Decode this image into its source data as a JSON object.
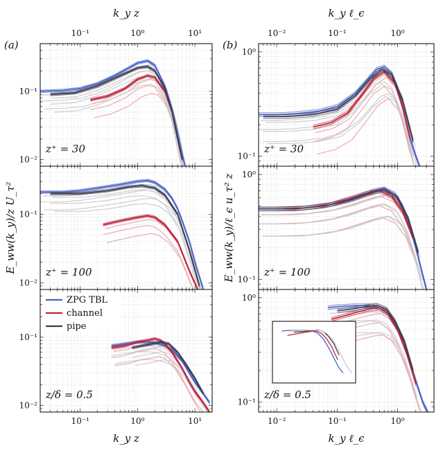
{
  "chart_data": [
    {
      "type": "line",
      "panel": "(a)",
      "top_xlabel": "k_y z",
      "xlabel": "k_y z",
      "ylabel": "E_ww(k_y)/z U_τ²",
      "xscale": "log",
      "yscale": "log",
      "xlim": [
        0.02,
        20
      ],
      "x_tick_labels": [
        "10⁻¹",
        "10⁰",
        "10¹"
      ],
      "subplots": [
        {
          "annotation": "z⁺ = 30",
          "ylim": [
            0.008,
            0.5
          ],
          "y_tick_labels": [
            "10⁻¹",
            "10⁻²"
          ],
          "series": [
            {
              "name": "ZPG TBL",
              "x": [
                0.02,
                0.05,
                0.1,
                0.2,
                0.4,
                0.7,
                1.0,
                1.5,
                2.0,
                3.0,
                4.0,
                5.0,
                6.0,
                7.0
              ],
              "y": [
                0.1,
                0.103,
                0.11,
                0.13,
                0.17,
                0.22,
                0.26,
                0.28,
                0.24,
                0.12,
                0.055,
                0.025,
                0.012,
                0.007
              ]
            },
            {
              "name": "channel",
              "x": [
                0.15,
                0.3,
                0.6,
                1.0,
                1.5,
                2.0,
                3.0,
                4.0,
                5.0,
                6.0
              ],
              "y": [
                0.075,
                0.085,
                0.11,
                0.15,
                0.17,
                0.16,
                0.1,
                0.05,
                0.02,
                0.01
              ]
            },
            {
              "name": "pipe",
              "x": [
                0.03,
                0.08,
                0.2,
                0.5,
                1.0,
                1.5,
                2.0,
                3.0,
                4.0,
                5.0,
                6.0
              ],
              "y": [
                0.09,
                0.095,
                0.12,
                0.17,
                0.22,
                0.23,
                0.2,
                0.11,
                0.05,
                0.02,
                0.01
              ]
            }
          ]
        },
        {
          "annotation": "z⁺ = 100",
          "ylim": [
            0.008,
            0.5
          ],
          "y_tick_labels": [
            "10⁻¹",
            "10⁻²"
          ],
          "series": [
            {
              "name": "ZPG TBL",
              "x": [
                0.02,
                0.05,
                0.1,
                0.2,
                0.5,
                1.0,
                1.5,
                2.0,
                3.0,
                4.0,
                5.0,
                6.0,
                8.0,
                10.0,
                14.0
              ],
              "y": [
                0.21,
                0.21,
                0.22,
                0.24,
                0.27,
                0.3,
                0.31,
                0.29,
                0.23,
                0.17,
                0.12,
                0.08,
                0.04,
                0.02,
                0.008
              ]
            },
            {
              "name": "channel",
              "x": [
                0.25,
                0.5,
                1.0,
                1.5,
                2.0,
                3.0,
                5.0,
                8.0,
                12.0
              ],
              "y": [
                0.07,
                0.08,
                0.09,
                0.095,
                0.09,
                0.07,
                0.04,
                0.015,
                0.007
              ]
            },
            {
              "name": "pipe",
              "x": [
                0.03,
                0.1,
                0.3,
                0.7,
                1.2,
                2.0,
                3.0,
                5.0,
                8.0,
                12.0
              ],
              "y": [
                0.2,
                0.2,
                0.22,
                0.25,
                0.26,
                0.24,
                0.19,
                0.1,
                0.03,
                0.009
              ]
            }
          ]
        },
        {
          "annotation": "z/δ = 0.5",
          "ylim": [
            0.008,
            0.5
          ],
          "y_tick_labels": [
            "10⁻¹",
            "10⁻²"
          ],
          "series": [
            {
              "name": "ZPG TBL",
              "x": [
                0.35,
                0.6,
                1.0,
                1.5,
                2.0,
                3.0,
                4.0,
                6.0,
                8.0,
                10.0,
                14.0,
                18.0
              ],
              "y": [
                0.075,
                0.08,
                0.085,
                0.085,
                0.083,
                0.075,
                0.065,
                0.045,
                0.03,
                0.022,
                0.015,
                0.011
              ]
            },
            {
              "name": "channel",
              "x": [
                0.35,
                0.6,
                1.0,
                1.5,
                2.0,
                2.5,
                3.0,
                4.0,
                6.0,
                8.0,
                10.0,
                14.0,
                18.0
              ],
              "y": [
                0.07,
                0.075,
                0.085,
                0.09,
                0.095,
                0.09,
                0.08,
                0.06,
                0.035,
                0.022,
                0.016,
                0.011,
                0.008
              ]
            },
            {
              "name": "pipe",
              "x": [
                0.8,
                1.2,
                1.8,
                2.5,
                3.5,
                5.0,
                7.0,
                10.0,
                14.0
              ],
              "y": [
                0.07,
                0.075,
                0.08,
                0.085,
                0.08,
                0.06,
                0.04,
                0.025,
                0.015
              ]
            }
          ]
        }
      ],
      "legend": {
        "placement": "top-left of bottom subplot",
        "entries": [
          {
            "label": "ZPG TBL",
            "color": "#4a62c9"
          },
          {
            "label": "channel",
            "color": "#c0243a"
          },
          {
            "label": "pipe",
            "color": "#3a3d52"
          }
        ]
      }
    },
    {
      "type": "line",
      "panel": "(b)",
      "top_xlabel": "k_y ℓ_ϵ",
      "xlabel": "k_y ℓ_ϵ",
      "ylabel": "E_ww(k_y)/ℓ_ϵ u_τ² z",
      "xscale": "log",
      "yscale": "log",
      "xlim": [
        0.005,
        4
      ],
      "x_tick_labels": [
        "10⁻²",
        "10⁻¹",
        "10⁰"
      ],
      "subplots": [
        {
          "annotation": "z⁺ = 30",
          "ylim": [
            0.08,
            1.2
          ],
          "y_tick_labels": [
            "10⁰",
            "10⁻¹"
          ],
          "series": [
            {
              "name": "ZPG TBL",
              "x": [
                0.005,
                0.01,
                0.02,
                0.05,
                0.1,
                0.2,
                0.3,
                0.45,
                0.6,
                0.8,
                1.0,
                1.3,
                1.6,
                2.0,
                2.5
              ],
              "y": [
                0.25,
                0.25,
                0.255,
                0.27,
                0.3,
                0.4,
                0.52,
                0.68,
                0.72,
                0.62,
                0.45,
                0.25,
                0.15,
                0.1,
                0.07
              ]
            },
            {
              "name": "channel",
              "x": [
                0.04,
                0.08,
                0.15,
                0.25,
                0.4,
                0.6,
                0.9,
                1.2,
                1.6
              ],
              "y": [
                0.19,
                0.21,
                0.26,
                0.38,
                0.55,
                0.65,
                0.5,
                0.3,
                0.15
              ]
            },
            {
              "name": "pipe",
              "x": [
                0.006,
                0.015,
                0.04,
                0.1,
                0.2,
                0.35,
                0.55,
                0.8,
                1.2,
                1.8
              ],
              "y": [
                0.24,
                0.24,
                0.25,
                0.28,
                0.38,
                0.55,
                0.68,
                0.6,
                0.35,
                0.14
              ]
            }
          ]
        },
        {
          "annotation": "z⁺ = 100",
          "ylim": [
            0.08,
            1.2
          ],
          "y_tick_labels": [
            "10⁰",
            "10⁻¹"
          ],
          "series": [
            {
              "name": "ZPG TBL",
              "x": [
                0.005,
                0.01,
                0.03,
                0.08,
                0.2,
                0.4,
                0.6,
                0.9,
                1.2,
                1.6,
                2.0,
                2.5,
                3.0
              ],
              "y": [
                0.47,
                0.47,
                0.48,
                0.52,
                0.6,
                0.7,
                0.73,
                0.65,
                0.5,
                0.32,
                0.2,
                0.12,
                0.08
              ]
            },
            {
              "name": "channel",
              "x": [
                0.01,
                0.03,
                0.08,
                0.15,
                0.3,
                0.5,
                0.8,
                1.2,
                1.8
              ],
              "y": [
                0.47,
                0.48,
                0.52,
                0.58,
                0.66,
                0.7,
                0.62,
                0.45,
                0.25
              ]
            },
            {
              "name": "pipe",
              "x": [
                0.005,
                0.02,
                0.06,
                0.15,
                0.35,
                0.6,
                1.0,
                1.5,
                2.2
              ],
              "y": [
                0.47,
                0.47,
                0.5,
                0.56,
                0.66,
                0.72,
                0.6,
                0.38,
                0.18
              ]
            }
          ]
        },
        {
          "annotation": "z/δ = 0.5",
          "ylim": [
            0.08,
            1.2
          ],
          "y_tick_labels": [
            "10⁰",
            "10⁻¹"
          ],
          "series": [
            {
              "name": "ZPG TBL",
              "x": [
                0.07,
                0.1,
                0.2,
                0.35,
                0.5,
                0.7,
                1.0,
                1.4,
                2.0,
                2.6,
                3.5
              ],
              "y": [
                0.8,
                0.82,
                0.84,
                0.84,
                0.8,
                0.7,
                0.5,
                0.3,
                0.16,
                0.1,
                0.07
              ]
            },
            {
              "name": "channel",
              "x": [
                0.08,
                0.12,
                0.2,
                0.35,
                0.5,
                0.7,
                1.0,
                1.4,
                2.0
              ],
              "y": [
                0.62,
                0.66,
                0.72,
                0.78,
                0.8,
                0.7,
                0.5,
                0.3,
                0.15
              ]
            },
            {
              "name": "pipe",
              "x": [
                0.1,
                0.18,
                0.3,
                0.45,
                0.65,
                0.9,
                1.3,
                1.8
              ],
              "y": [
                0.75,
                0.78,
                0.82,
                0.85,
                0.78,
                0.6,
                0.38,
                0.2
              ]
            }
          ]
        }
      ]
    }
  ],
  "colors": {
    "tbl": "#4a62c9",
    "channel": "#c0243a",
    "pipe": "#3a3d52",
    "light_red": "#e8a3ad",
    "light_grey": "#c9c9c9",
    "grid": "#bdbdbd"
  }
}
